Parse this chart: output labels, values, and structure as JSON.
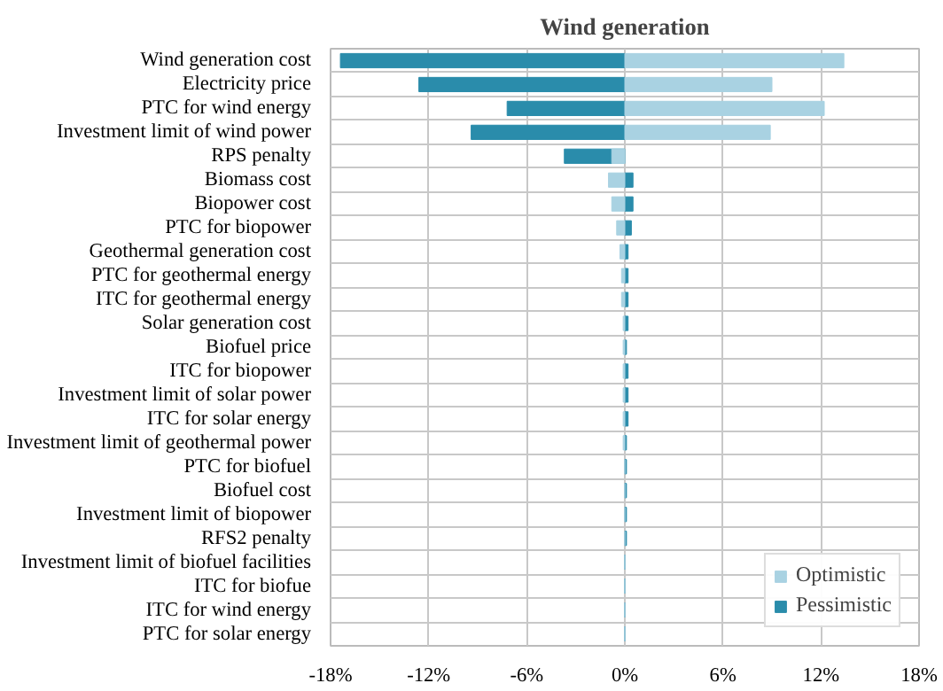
{
  "chart_data": {
    "type": "bar",
    "orientation": "horizontal",
    "title": "Wind generation",
    "categories": [
      "Wind generation cost",
      "Electricity price",
      "PTC for wind energy",
      "Investment limit of wind power",
      "RPS penalty",
      "Biomass cost",
      "Biopower cost",
      "PTC for biopower",
      "Geothermal generation cost",
      "PTC for geothermal energy",
      "ITC for geothermal energy",
      "Solar generation cost",
      "Biofuel price",
      "ITC for biopower",
      "Investment limit of solar power",
      "ITC for solar energy",
      "Investment limit of geothermal power",
      "PTC for biofuel",
      "Biofuel cost",
      "Investment limit of biopower",
      "RFS2 penalty",
      "Investment limit of biofuel facilities",
      "ITC for biofue",
      "ITC for wind energy",
      "PTC for solar energy"
    ],
    "series": [
      {
        "name": "Pessimistic",
        "color": "#2a8cab",
        "values": [
          -17.4,
          -12.6,
          -7.2,
          -9.4,
          -3.7,
          0.5,
          0.5,
          0.4,
          0.2,
          0.2,
          0.2,
          0.2,
          0.1,
          0.2,
          0.2,
          0.2,
          0.1,
          0.1,
          0.1,
          0.1,
          0.1,
          0,
          0,
          0,
          0
        ]
      },
      {
        "name": "Optimistic",
        "color": "#a9d2e2",
        "values": [
          13.4,
          9.0,
          12.2,
          8.9,
          -0.8,
          -1.0,
          -0.8,
          -0.5,
          -0.3,
          -0.2,
          -0.2,
          -0.1,
          -0.1,
          -0.1,
          -0.1,
          -0.1,
          -0.1,
          0,
          0,
          0,
          0,
          0,
          0,
          0,
          0
        ]
      }
    ],
    "xlim": [
      -18,
      18
    ],
    "xticks": [
      {
        "value": -18,
        "label": "-18%"
      },
      {
        "value": -12,
        "label": "-12%"
      },
      {
        "value": -6,
        "label": "-6%"
      },
      {
        "value": 0,
        "label": "0%"
      },
      {
        "value": 6,
        "label": "6%"
      },
      {
        "value": 12,
        "label": "12%"
      },
      {
        "value": 18,
        "label": "18%"
      }
    ],
    "grid": true,
    "legend": "bottom right"
  }
}
